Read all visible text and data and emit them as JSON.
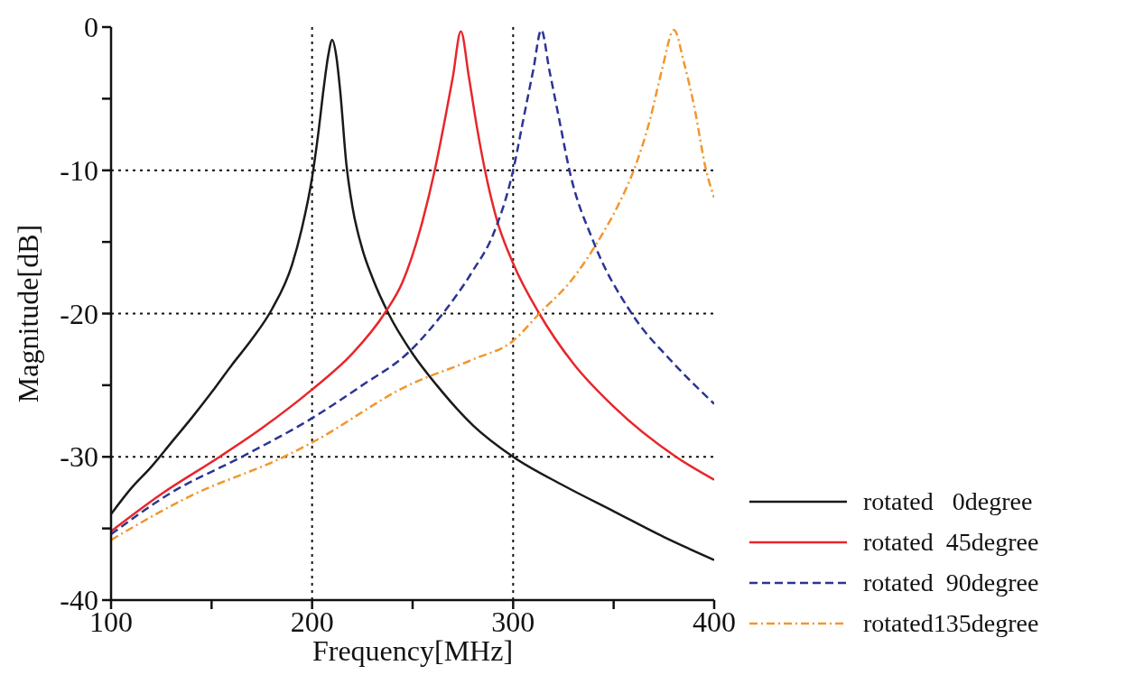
{
  "chart_data": {
    "type": "line",
    "xlabel": "Frequency[MHz]",
    "ylabel": "Magnitude[dB]",
    "xlim": [
      100,
      400
    ],
    "xticks": [
      100,
      {
        "value": 150,
        "label": null
      },
      200,
      {
        "value": 250,
        "label": null
      },
      300,
      {
        "value": 350,
        "label": null
      },
      400
    ],
    "ylim": [
      -40,
      0
    ],
    "yticks": [
      -40,
      {
        "value": -35,
        "label": null
      },
      -30,
      {
        "value": -25,
        "label": null
      },
      -20,
      {
        "value": -15,
        "label": null
      },
      -10,
      {
        "value": -5,
        "label": null
      },
      0
    ],
    "grid": true,
    "legend": "bottom right",
    "marker": "none",
    "series": [
      {
        "name": "rotated   0degree",
        "color": "#1a1a1a",
        "line_style": "solid",
        "x": [
          100,
          110,
          120,
          130,
          140,
          150,
          160,
          170,
          180,
          190,
          195,
          200,
          203,
          206,
          208,
          210,
          212,
          214,
          217,
          220,
          225,
          230,
          238,
          250,
          262,
          280,
          300,
          325,
          350,
          375,
          400
        ],
        "values": [
          -34.0,
          -32.2,
          -30.7,
          -29.0,
          -27.3,
          -25.5,
          -23.6,
          -21.8,
          -19.7,
          -16.6,
          -14.0,
          -10.5,
          -7.5,
          -4.0,
          -2.0,
          -0.9,
          -2.0,
          -4.5,
          -9.5,
          -12.5,
          -15.5,
          -17.5,
          -20.0,
          -22.8,
          -25.0,
          -27.8,
          -30.0,
          -32.0,
          -33.8,
          -35.6,
          -37.2
        ]
      },
      {
        "name": "rotated  45degree",
        "color": "#e8262b",
        "line_style": "solid",
        "x": [
          100,
          125,
          154,
          175,
          200,
          220,
          236,
          245,
          255,
          261,
          266,
          270,
          274,
          278,
          282,
          286,
          292,
          300,
          313,
          330,
          350,
          381,
          400
        ],
        "values": [
          -35.2,
          -32.6,
          -30.0,
          -28.0,
          -25.3,
          -22.8,
          -20.0,
          -17.8,
          -13.5,
          -10.0,
          -6.5,
          -3.5,
          -0.3,
          -3.5,
          -7.0,
          -10.0,
          -13.5,
          -16.5,
          -20.0,
          -23.5,
          -26.5,
          -30.0,
          -31.6
        ]
      },
      {
        "name": "rotated  90degree",
        "color": "#2b3494",
        "line_style": "dashed",
        "x": [
          100,
          130,
          165,
          200,
          225,
          248,
          265,
          280,
          290,
          300,
          305,
          310,
          314,
          318,
          323,
          328,
          340,
          359,
          380,
          400
        ],
        "values": [
          -35.4,
          -32.5,
          -30.0,
          -27.3,
          -25.0,
          -22.7,
          -20.0,
          -17.0,
          -14.5,
          -10.0,
          -6.5,
          -3.0,
          -0.2,
          -3.0,
          -6.5,
          -10.0,
          -15.0,
          -20.0,
          -23.5,
          -26.3
        ]
      },
      {
        "name": "rotated135degree",
        "color": "#f3962b",
        "line_style": "dashdot",
        "x": [
          100,
          140,
          186,
          200,
          248,
          280,
          300,
          313,
          330,
          342,
          352,
          360,
          368,
          374,
          380,
          385,
          390,
          396,
          400
        ],
        "values": [
          -35.8,
          -32.7,
          -30.0,
          -29.0,
          -25.0,
          -23.2,
          -21.9,
          -20.0,
          -17.5,
          -15.0,
          -12.5,
          -10.0,
          -6.5,
          -3.0,
          -0.2,
          -2.5,
          -5.5,
          -10.0,
          -11.9
        ]
      }
    ]
  }
}
